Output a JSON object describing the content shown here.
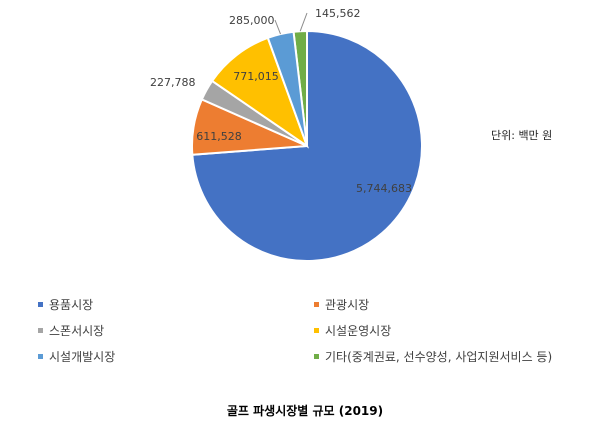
{
  "chart_data": {
    "type": "pie",
    "unit_note": "단위: 백만 원",
    "bottom_title": "골프 파생시장별 규모 (2019)",
    "slices": [
      {
        "name": "용품시장",
        "value": 5744683,
        "label": "5,744,683",
        "color": "#4472C4"
      },
      {
        "name": "관광시장",
        "value": 611528,
        "label": "611,528",
        "color": "#ED7D31"
      },
      {
        "name": "스폰서시장",
        "value": 227788,
        "label": "227,788",
        "color": "#A5A5A5"
      },
      {
        "name": "시설운영시장",
        "value": 771015,
        "label": "771,015",
        "color": "#FFC000"
      },
      {
        "name": "시설개발시장",
        "value": 285000,
        "label": "285,000",
        "color": "#5B9BD5"
      },
      {
        "name": "기타(중계권료, 선수양성, 사업지원서비스 등)",
        "value": 145562,
        "label": "145,562",
        "color": "#70AD47"
      }
    ],
    "legend_placement": "bottom"
  }
}
